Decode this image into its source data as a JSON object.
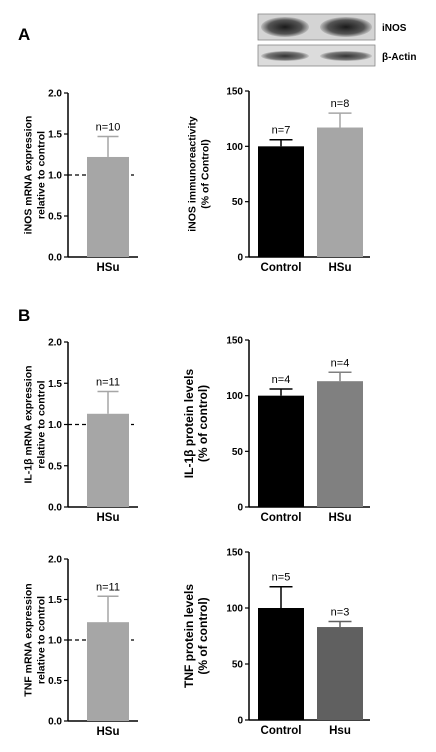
{
  "panels": {
    "a": "A",
    "b": "B"
  },
  "blot": {
    "bands": [
      "iNOS",
      "β-Actin"
    ]
  },
  "chart_data": [
    {
      "type": "bar",
      "categories": [
        "HSu"
      ],
      "values": [
        1.22
      ],
      "errors": [
        0.25
      ],
      "n_labels": [
        "n=10"
      ],
      "ylabel": [
        "iNOS mRNA expression",
        "relative to control"
      ],
      "ylim": [
        0,
        2.0
      ],
      "yticks": [
        "0.0",
        "0.5",
        "1.0",
        "1.5",
        "2.0"
      ],
      "reference_line": 1.0,
      "colors": [
        "#a6a6a6"
      ]
    },
    {
      "type": "bar",
      "categories": [
        "Control",
        "HSu"
      ],
      "values": [
        100,
        117
      ],
      "errors": [
        6,
        13
      ],
      "n_labels": [
        "n=7",
        "n=8"
      ],
      "ylabel": [
        "iNOS immunoreactivity",
        "(% of Control)"
      ],
      "ylim": [
        0,
        150
      ],
      "yticks": [
        "0",
        "50",
        "100",
        "150"
      ],
      "colors": [
        "#000000",
        "#a6a6a6"
      ]
    },
    {
      "type": "bar",
      "categories": [
        "HSu"
      ],
      "values": [
        1.13
      ],
      "errors": [
        0.27
      ],
      "n_labels": [
        "n=11"
      ],
      "ylabel": [
        "IL-1β mRNA expression",
        "relative to control"
      ],
      "ylim": [
        0,
        2.0
      ],
      "yticks": [
        "0.0",
        "0.5",
        "1.0",
        "1.5",
        "2.0"
      ],
      "reference_line": 1.0,
      "colors": [
        "#a6a6a6"
      ]
    },
    {
      "type": "bar",
      "categories": [
        "Control",
        "HSu"
      ],
      "values": [
        100,
        113
      ],
      "errors": [
        6,
        8
      ],
      "n_labels": [
        "n=4",
        "n=4"
      ],
      "ylabel": [
        "IL-1β protein levels",
        "(% of control)"
      ],
      "ylim": [
        0,
        150
      ],
      "yticks": [
        "0",
        "50",
        "100",
        "150"
      ],
      "colors": [
        "#000000",
        "#808080"
      ]
    },
    {
      "type": "bar",
      "categories": [
        "HSu"
      ],
      "values": [
        1.22
      ],
      "errors": [
        0.32
      ],
      "n_labels": [
        "n=11"
      ],
      "ylabel": [
        "TNF mRNA expression",
        "relative to control"
      ],
      "ylim": [
        0,
        2.0
      ],
      "yticks": [
        "0.0",
        "0.5",
        "1.0",
        "1.5",
        "2.0"
      ],
      "reference_line": 1.0,
      "colors": [
        "#a6a6a6"
      ]
    },
    {
      "type": "bar",
      "categories": [
        "Control",
        "Hsu"
      ],
      "values": [
        100,
        83
      ],
      "errors": [
        19,
        5
      ],
      "n_labels": [
        "n=5",
        "n=3"
      ],
      "ylabel": [
        "TNF protein levels",
        "(% of control)"
      ],
      "ylim": [
        0,
        150
      ],
      "yticks": [
        "0",
        "50",
        "100",
        "150"
      ],
      "colors": [
        "#000000",
        "#606060"
      ]
    }
  ]
}
